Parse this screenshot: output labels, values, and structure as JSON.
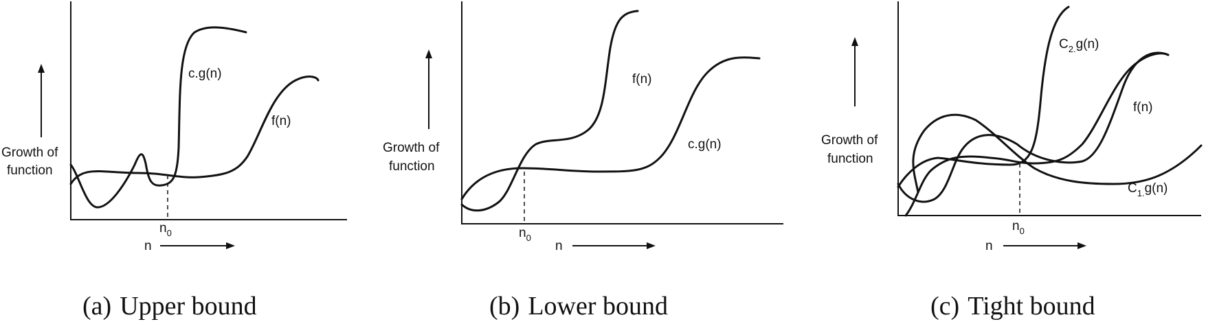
{
  "panels": [
    {
      "growth_label_line1": "Growth of",
      "growth_label_line2": "function",
      "x_label": "n",
      "n0_main": "n",
      "n0_sub": "0",
      "curve1_label": "c.g(n)",
      "curve2_label": "f(n)",
      "caption_letter": "(a)",
      "caption_text": "Upper bound"
    },
    {
      "growth_label_line1": "Growth of",
      "growth_label_line2": "function",
      "x_label": "n",
      "n0_main": "n",
      "n0_sub": "0",
      "curve1_label": "f(n)",
      "curve2_label": "c.g(n)",
      "caption_letter": "(b)",
      "caption_text": "Lower bound"
    },
    {
      "growth_label_line1": "Growth of",
      "growth_label_line2": "function",
      "x_label": "n",
      "n0_main": "n",
      "n0_sub": "0",
      "upper_label_main": "C",
      "upper_label_sub": "2.",
      "upper_label_rest": "g(n)",
      "middle_label": "f(n)",
      "lower_label_main": "C",
      "lower_label_sub": "1.",
      "lower_label_rest": "g(n)",
      "caption_letter": "(c)",
      "caption_text": "Tight bound"
    }
  ]
}
